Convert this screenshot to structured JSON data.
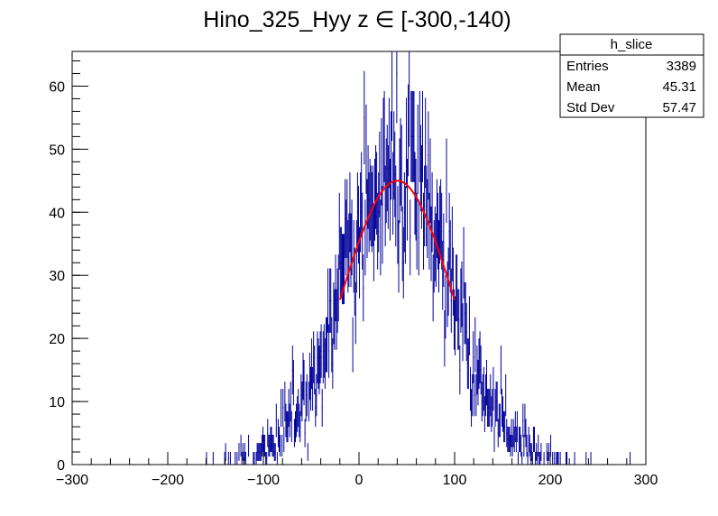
{
  "chart_data": {
    "type": "bar",
    "title": "Hino_325_Hyy z  ∈ [-300,-140)",
    "xlabel": "",
    "ylabel": "",
    "xlim": [
      -300,
      300
    ],
    "ylim": [
      0,
      65.5
    ],
    "x_ticks": [
      -300,
      -200,
      -100,
      0,
      100,
      200,
      300
    ],
    "x_tick_labels": [
      "−300",
      "−200",
      "−100",
      "0",
      "100",
      "200",
      "300"
    ],
    "y_ticks": [
      0,
      10,
      20,
      30,
      40,
      50,
      60
    ],
    "y_tick_labels": [
      "0",
      "10",
      "20",
      "30",
      "40",
      "50",
      "60"
    ],
    "grid": false,
    "histogram": {
      "name": "h_slice",
      "color": "#000099",
      "style": "error bars",
      "bin_width": 1,
      "profile": {
        "shape": "approximately gaussian",
        "peak_x": 40,
        "peak_y": 45,
        "sigma": 57.5,
        "max_observed": 62
      }
    },
    "fit": {
      "color": "#ff0000",
      "type": "gaussian",
      "x_range": [
        -20,
        100
      ],
      "peak_x": 40,
      "peak_y": 45,
      "sigma": 57.5
    },
    "stats_box": {
      "title": "h_slice",
      "rows": [
        {
          "label": "Entries",
          "value": "3389"
        },
        {
          "label": "Mean",
          "value": "45.31"
        },
        {
          "label": "Std Dev",
          "value": "57.47"
        }
      ]
    }
  }
}
